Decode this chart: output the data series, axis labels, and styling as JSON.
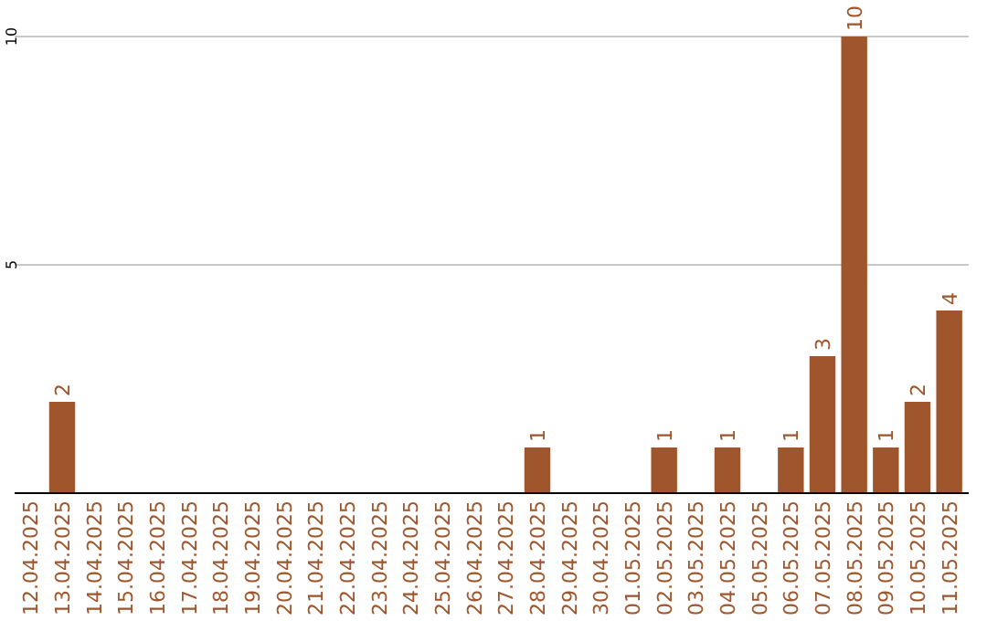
{
  "chart_data": {
    "type": "bar",
    "categories": [
      "12.04.2025",
      "13.04.2025",
      "14.04.2025",
      "15.04.2025",
      "16.04.2025",
      "17.04.2025",
      "18.04.2025",
      "19.04.2025",
      "20.04.2025",
      "21.04.2025",
      "22.04.2025",
      "23.04.2025",
      "24.04.2025",
      "25.04.2025",
      "26.04.2025",
      "27.04.2025",
      "28.04.2025",
      "29.04.2025",
      "30.04.2025",
      "01.05.2025",
      "02.05.2025",
      "03.05.2025",
      "04.05.2025",
      "05.05.2025",
      "06.05.2025",
      "07.05.2025",
      "08.05.2025",
      "09.05.2025",
      "10.05.2025",
      "11.05.2025"
    ],
    "values": [
      null,
      2,
      null,
      null,
      null,
      null,
      null,
      null,
      null,
      null,
      null,
      null,
      null,
      null,
      null,
      null,
      1,
      null,
      null,
      null,
      1,
      null,
      1,
      null,
      1,
      3,
      10,
      1,
      2,
      4
    ],
    "color": "#a0562c",
    "ylim": [
      0,
      10
    ],
    "yticks": [
      5,
      10
    ],
    "grid": "y",
    "data_labels": true
  }
}
